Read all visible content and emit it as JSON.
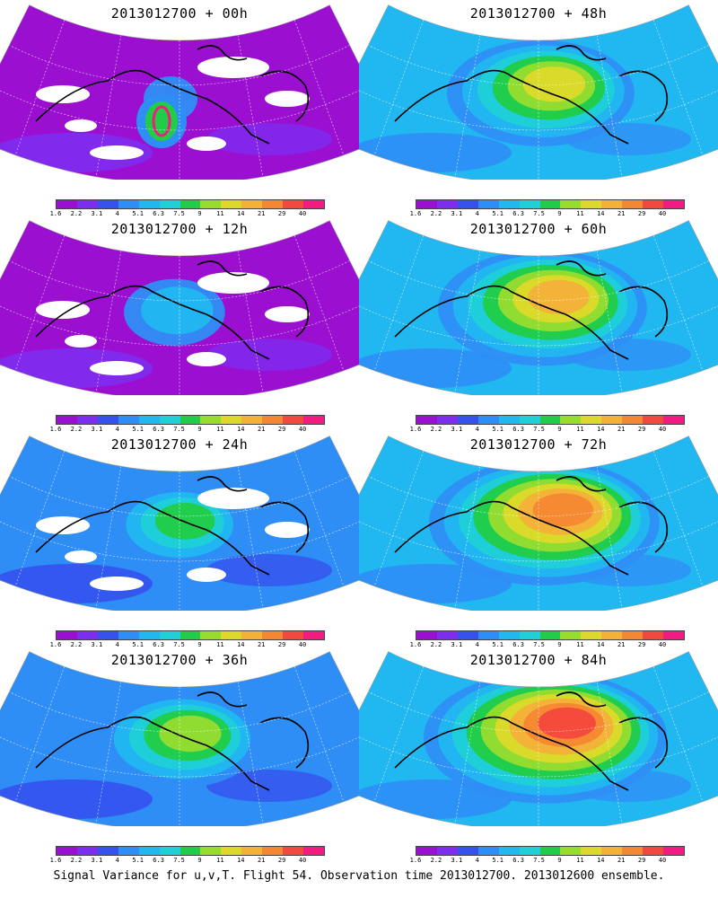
{
  "panels": [
    {
      "title": "2013012700 + 00h",
      "level": 0
    },
    {
      "title": "2013012700 + 48h",
      "level": 0.62
    },
    {
      "title": "2013012700 + 12h",
      "level": 0.22
    },
    {
      "title": "2013012700 + 60h",
      "level": 0.72
    },
    {
      "title": "2013012700 + 24h",
      "level": 0.36
    },
    {
      "title": "2013012700 + 72h",
      "level": 0.82
    },
    {
      "title": "2013012700 + 36h",
      "level": 0.5
    },
    {
      "title": "2013012700 + 84h",
      "level": 0.88
    }
  ],
  "colorbar": {
    "ticks": [
      "1.6",
      "2.2",
      "3.1",
      "4",
      "5.1",
      "6.3",
      "7.5",
      "9",
      "11",
      "14",
      "21",
      "29",
      "40"
    ],
    "colors": [
      "#9b10d0",
      "#7e2cf0",
      "#3552ee",
      "#2f8ef6",
      "#21b7f1",
      "#1fd0d6",
      "#21cc46",
      "#98dc2e",
      "#ddd92a",
      "#f4b13a",
      "#f48832",
      "#f3483e",
      "#f21b82"
    ]
  },
  "footer": "Signal Variance for u,v,T. Flight 54. Observation time 2013012700. 2013012600 ensemble."
}
